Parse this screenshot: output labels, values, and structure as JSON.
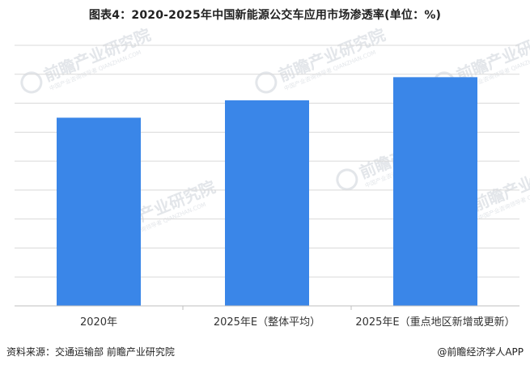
{
  "title": "图表4：2020-2025年中国新能源公交车应用市场渗透率(单位：%)",
  "footer": {
    "source": "资料来源：交通运输部 前瞻产业研究院",
    "brand": "@前瞻经济学人APP"
  },
  "colors": {
    "bar": "#3a86e8",
    "grid": "#d9d9d9",
    "axis": "#bfbfbf",
    "watermark": "#e3e6ea"
  },
  "watermark": {
    "text": "前瞻产业研究院",
    "subtext": "中国产业咨询领导者 QIANZHAN.COM"
  },
  "chart_data": {
    "type": "bar",
    "categories": [
      "2020年",
      "2025年E（整体平均）",
      "2025年E（重点地区新增或更新）"
    ],
    "values": [
      65,
      71,
      79
    ],
    "ylim": [
      0,
      90
    ],
    "grid": true,
    "gridlines": 9,
    "title": "图表4：2020-2025年中国新能源公交车应用市场渗透率(单位：%)",
    "xlabel": "",
    "ylabel": ""
  }
}
